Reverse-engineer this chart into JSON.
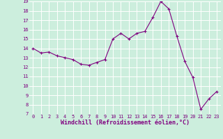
{
  "x": [
    0,
    1,
    2,
    3,
    4,
    5,
    6,
    7,
    8,
    9,
    10,
    11,
    12,
    13,
    14,
    15,
    16,
    17,
    18,
    19,
    20,
    21,
    22,
    23
  ],
  "y": [
    14.0,
    13.5,
    13.6,
    13.2,
    13.0,
    12.8,
    12.3,
    12.2,
    12.5,
    12.8,
    15.0,
    15.6,
    15.0,
    15.6,
    15.8,
    17.3,
    19.0,
    18.2,
    15.3,
    12.6,
    10.9,
    7.5,
    8.6,
    9.4
  ],
  "line_color": "#800080",
  "marker": "+",
  "marker_color": "#800080",
  "bg_color": "#cceedd",
  "grid_color": "#ffffff",
  "xlabel": "Windchill (Refroidissement éolien,°C)",
  "xlabel_color": "#800080",
  "tick_color": "#800080",
  "ylim": [
    7,
    19
  ],
  "xlim_min": -0.5,
  "xlim_max": 23.5,
  "yticks": [
    7,
    8,
    9,
    10,
    11,
    12,
    13,
    14,
    15,
    16,
    17,
    18,
    19
  ],
  "xticks": [
    0,
    1,
    2,
    3,
    4,
    5,
    6,
    7,
    8,
    9,
    10,
    11,
    12,
    13,
    14,
    15,
    16,
    17,
    18,
    19,
    20,
    21,
    22,
    23
  ],
  "tick_fontsize": 5.0,
  "xlabel_fontsize": 6.0,
  "linewidth": 0.8,
  "markersize": 3.5
}
